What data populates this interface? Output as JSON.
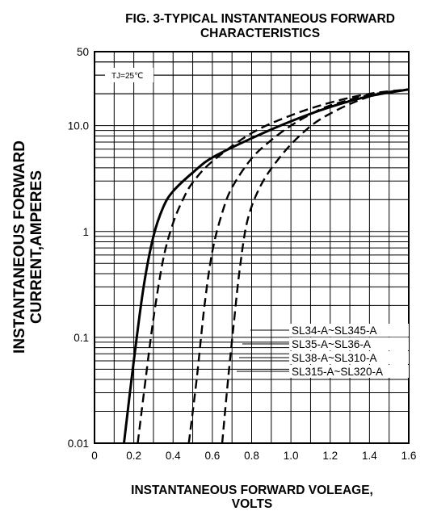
{
  "chart_data": {
    "type": "line",
    "title": [
      "FIG. 3-TYPICAL INSTANTANEOUS FORWARD",
      "CHARACTERISTICS"
    ],
    "xlabel": [
      "INSTANTANEOUS FORWARD VOLEAGE,",
      "VOLTS"
    ],
    "ylabel": [
      "INSTANTANEOUS FORWARD",
      "CURRENT,AMPERES"
    ],
    "annotation": "TJ=25℃",
    "x_scale": "linear",
    "y_scale": "log",
    "xlim": [
      0,
      1.6
    ],
    "ylim": [
      0.01,
      50
    ],
    "grid": true,
    "x_ticks": [
      {
        "value": 0,
        "label": "0"
      },
      {
        "value": 0.2,
        "label": "0.2"
      },
      {
        "value": 0.4,
        "label": "0.4"
      },
      {
        "value": 0.6,
        "label": "0.6"
      },
      {
        "value": 0.8,
        "label": "0.8"
      },
      {
        "value": 1.0,
        "label": "1.0"
      },
      {
        "value": 1.2,
        "label": "1.2"
      },
      {
        "value": 1.4,
        "label": "1.4"
      },
      {
        "value": 1.6,
        "label": "1.6"
      }
    ],
    "y_ticks": [
      {
        "value": 50,
        "label": "50"
      },
      {
        "value": 10,
        "label": "10.0"
      },
      {
        "value": 1,
        "label": "1"
      },
      {
        "value": 0.1,
        "label": "0.1"
      },
      {
        "value": 0.01,
        "label": "0.01"
      }
    ],
    "series": [
      {
        "name": "SL34-A~SL345-A",
        "line_style": "solid",
        "points": [
          [
            0.15,
            0.01
          ],
          [
            0.2,
            0.06
          ],
          [
            0.25,
            0.3
          ],
          [
            0.3,
            0.9
          ],
          [
            0.35,
            1.7
          ],
          [
            0.4,
            2.4
          ],
          [
            0.5,
            3.6
          ],
          [
            0.6,
            5.0
          ],
          [
            0.8,
            7.6
          ],
          [
            1.0,
            11
          ],
          [
            1.2,
            15
          ],
          [
            1.4,
            19
          ],
          [
            1.6,
            22
          ]
        ]
      },
      {
        "name": "SL35-A~SL36-A",
        "line_style": "dashed",
        "points": [
          [
            0.22,
            0.01
          ],
          [
            0.26,
            0.04
          ],
          [
            0.3,
            0.15
          ],
          [
            0.35,
            0.55
          ],
          [
            0.4,
            1.2
          ],
          [
            0.45,
            2.0
          ],
          [
            0.5,
            2.9
          ],
          [
            0.6,
            4.6
          ],
          [
            0.8,
            8.5
          ],
          [
            1.0,
            12.5
          ],
          [
            1.2,
            16.5
          ],
          [
            1.4,
            20
          ],
          [
            1.6,
            22
          ]
        ]
      },
      {
        "name": "SL38-A~SL310-A",
        "line_style": "dashed",
        "points": [
          [
            0.48,
            0.01
          ],
          [
            0.52,
            0.04
          ],
          [
            0.56,
            0.2
          ],
          [
            0.6,
            0.65
          ],
          [
            0.65,
            1.5
          ],
          [
            0.7,
            2.6
          ],
          [
            0.8,
            4.9
          ],
          [
            0.9,
            7.3
          ],
          [
            1.0,
            10
          ],
          [
            1.1,
            12.8
          ],
          [
            1.2,
            15.5
          ],
          [
            1.4,
            19.5
          ],
          [
            1.6,
            22
          ]
        ]
      },
      {
        "name": "SL315-A~SL320-A",
        "line_style": "dashed",
        "points": [
          [
            0.65,
            0.01
          ],
          [
            0.68,
            0.04
          ],
          [
            0.71,
            0.14
          ],
          [
            0.74,
            0.45
          ],
          [
            0.78,
            1.3
          ],
          [
            0.85,
            2.8
          ],
          [
            0.95,
            5.2
          ],
          [
            1.05,
            8.2
          ],
          [
            1.15,
            11.5
          ],
          [
            1.3,
            16
          ],
          [
            1.45,
            20
          ],
          [
            1.6,
            22
          ]
        ]
      }
    ]
  }
}
